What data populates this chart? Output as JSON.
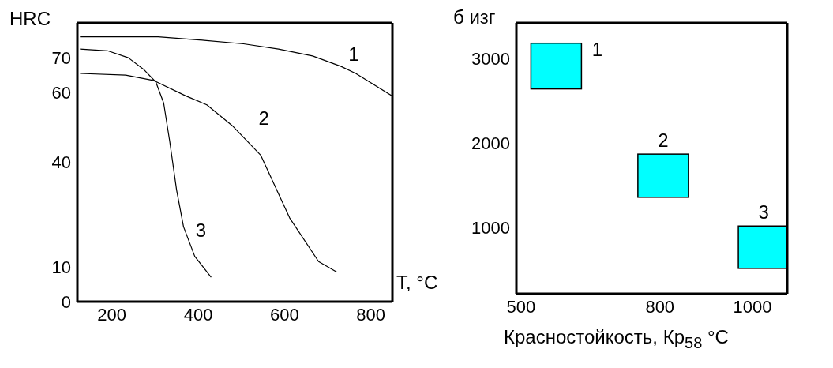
{
  "chart_data": [
    {
      "type": "line",
      "xlabel": "T, °C",
      "ylabel": "HRC",
      "xlim": [
        120,
        850
      ],
      "ylim": [
        0,
        80
      ],
      "xticks": [
        200,
        400,
        600,
        800
      ],
      "yticks": [
        0,
        10,
        40,
        60,
        70
      ],
      "marker": "none",
      "line_style": "solid",
      "series": [
        {
          "name": "1",
          "color": "#000000",
          "x": [
            126,
            307,
            414,
            505,
            586,
            665,
            731,
            765,
            850
          ],
          "values": [
            76,
            76,
            75,
            74,
            72.5,
            70.5,
            67.5,
            65.5,
            59
          ]
        },
        {
          "name": "2",
          "color": "#000000",
          "x": [
            126,
            232,
            296,
            372,
            420,
            479,
            545,
            612,
            679,
            721
          ],
          "values": [
            65.5,
            65,
            63.5,
            59,
            56.5,
            50.5,
            42,
            24,
            11.5,
            8.5
          ]
        },
        {
          "name": "3",
          "color": "#000000",
          "x": [
            126,
            190,
            238,
            275,
            302,
            320,
            334,
            350,
            366,
            392,
            430
          ],
          "values": [
            72.5,
            72,
            70,
            66.5,
            63,
            57,
            46,
            32,
            21.5,
            13,
            7
          ]
        }
      ]
    },
    {
      "type": "bar",
      "xlabel": "Красностойкость, Кр$_{58}$ °C",
      "ylabel": "б изг",
      "xlim": [
        490,
        1075
      ],
      "ylim": [
        220,
        3420
      ],
      "xticks": [
        500,
        800,
        1000
      ],
      "yticks": [
        1000,
        2000,
        3000
      ],
      "series": [
        {
          "name": "1",
          "color": "#00ffff",
          "x": [
            576
          ],
          "base": [
            2640
          ],
          "values": [
            540
          ]
        },
        {
          "name": "2",
          "color": "#00ffff",
          "x": [
            807
          ],
          "base": [
            1360
          ],
          "values": [
            510
          ]
        },
        {
          "name": "3",
          "color": "#00ffff",
          "x": [
            1024
          ],
          "base": [
            520
          ],
          "values": [
            500
          ]
        }
      ]
    }
  ]
}
